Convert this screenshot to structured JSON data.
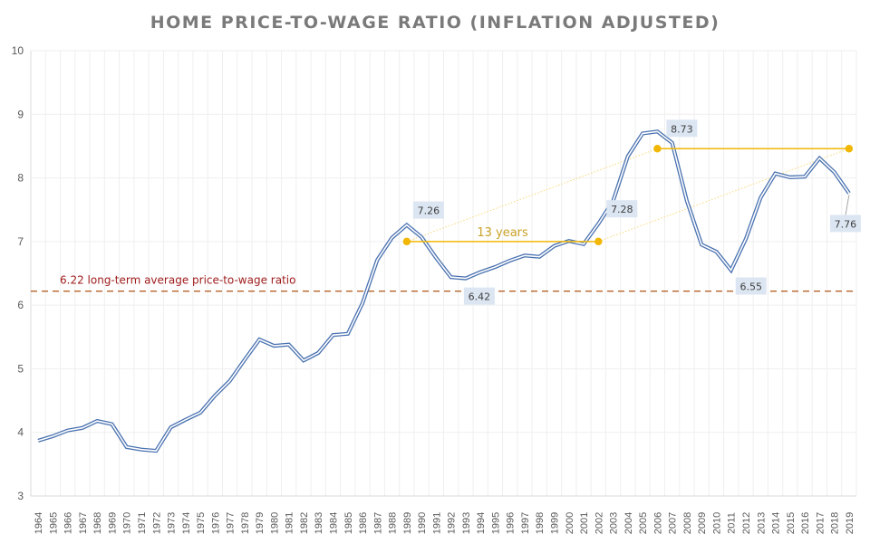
{
  "chart_data": {
    "type": "line",
    "title": "HOME PRICE-TO-WAGE RATIO (INFLATION ADJUSTED)",
    "xlabel": "",
    "ylabel": "",
    "ylim": [
      3,
      10
    ],
    "yticks": [
      "3",
      "4",
      "5",
      "6",
      "7",
      "8",
      "9",
      "10"
    ],
    "grid": true,
    "legend": "none",
    "categories": [
      "1964",
      "1965",
      "1966",
      "1967",
      "1968",
      "1969",
      "1970",
      "1971",
      "1972",
      "1973",
      "1974",
      "1975",
      "1976",
      "1977",
      "1978",
      "1979",
      "1980",
      "1981",
      "1982",
      "1983",
      "1984",
      "1985",
      "1986",
      "1987",
      "1988",
      "1989",
      "1990",
      "1991",
      "1992",
      "1993",
      "1994",
      "1995",
      "1996",
      "1997",
      "1998",
      "1999",
      "2000",
      "2001",
      "2002",
      "2003",
      "2004",
      "2005",
      "2006",
      "2007",
      "2008",
      "2009",
      "2010",
      "2011",
      "2012",
      "2013",
      "2014",
      "2015",
      "2016",
      "2017",
      "2018",
      "2019"
    ],
    "series": [
      {
        "name": "Home price-to-wage ratio",
        "color": "#4a72b0",
        "values": [
          3.87,
          3.94,
          4.03,
          4.07,
          4.18,
          4.13,
          3.77,
          3.73,
          3.71,
          4.08,
          4.2,
          4.31,
          4.58,
          4.81,
          5.14,
          5.46,
          5.36,
          5.38,
          5.13,
          5.25,
          5.53,
          5.55,
          6.03,
          6.71,
          7.06,
          7.26,
          7.07,
          6.74,
          6.44,
          6.42,
          6.52,
          6.6,
          6.7,
          6.78,
          6.76,
          6.93,
          7.01,
          6.96,
          7.28,
          7.64,
          8.34,
          8.7,
          8.73,
          8.55,
          7.64,
          6.95,
          6.84,
          6.55,
          7.04,
          7.69,
          8.07,
          8.01,
          8.02,
          8.31,
          8.09,
          7.76
        ]
      }
    ],
    "data_labels": [
      {
        "year": "1989",
        "text": "7.26"
      },
      {
        "year": "1993",
        "text": "6.42"
      },
      {
        "year": "2002",
        "text": "7.28"
      },
      {
        "year": "2006",
        "text": "8.73"
      },
      {
        "year": "2011",
        "text": "6.55"
      },
      {
        "year": "2019",
        "text": "7.76"
      }
    ],
    "average_line": {
      "value": 6.22,
      "label": "6.22 long-term average price-to-wage ratio",
      "color": "#b5642a",
      "label_color": "#9e1b1b"
    },
    "annotations": {
      "color": "#f2b705",
      "spans": [
        {
          "from": "1989",
          "to": "2002",
          "value": 7.0,
          "label": "13 years"
        },
        {
          "from": "2006",
          "to": "2019",
          "value": 8.46,
          "label": ""
        }
      ],
      "connectors": [
        {
          "from": {
            "year": "1989",
            "value": 7.0
          },
          "to": {
            "year": "2006",
            "value": 8.46
          }
        },
        {
          "from": {
            "year": "2002",
            "value": 7.0
          },
          "to": {
            "year": "2019",
            "value": 8.46
          }
        }
      ]
    }
  }
}
